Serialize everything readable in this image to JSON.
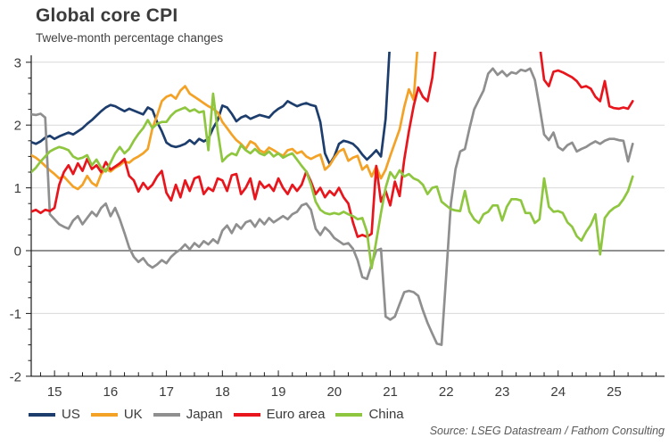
{
  "title": "Global core CPI",
  "subtitle": "Twelve-month percentage changes",
  "source": "Source: LSEG Datastream / Fathom Consulting",
  "chart_data": {
    "type": "line",
    "x_start_year": 2014.583,
    "x_step_months": 1,
    "x_axis": {
      "year_ticks": [
        2015,
        2016,
        2017,
        2018,
        2019,
        2020,
        2021,
        2022,
        2023,
        2024,
        2025
      ],
      "year_labels": [
        "15",
        "16",
        "17",
        "18",
        "19",
        "20",
        "21",
        "22",
        "23",
        "24",
        "25"
      ],
      "minor_tick_months": 3
    },
    "y_axis": {
      "min": -2,
      "max": 3,
      "ticks": [
        3,
        2,
        1,
        0,
        -1,
        -2
      ],
      "tick_labels": [
        "3",
        "2",
        "1",
        "0",
        "-1",
        "-2"
      ],
      "gridlines": [
        3,
        2,
        1,
        -1
      ],
      "zero_line": 0,
      "minor_tick_interval": 0.25
    },
    "legend_position": "bottom",
    "grid_color": "#d9d9d9",
    "zero_line_color": "#4d4d4d",
    "axis_color": "#1a1a1a",
    "series": [
      {
        "name": "US",
        "color": "#1d3d6d",
        "values": [
          1.73,
          1.7,
          1.74,
          1.8,
          1.83,
          1.78,
          1.82,
          1.85,
          1.88,
          1.85,
          1.9,
          1.95,
          2.02,
          2.08,
          2.15,
          2.22,
          2.28,
          2.32,
          2.3,
          2.26,
          2.22,
          2.26,
          2.23,
          2.2,
          2.17,
          2.28,
          2.24,
          2.05,
          1.9,
          1.72,
          1.67,
          1.65,
          1.67,
          1.7,
          1.76,
          1.7,
          1.78,
          1.74,
          1.78,
          1.95,
          2.08,
          2.31,
          2.28,
          2.18,
          2.06,
          2.12,
          2.15,
          2.1,
          2.13,
          2.16,
          2.14,
          2.12,
          2.2,
          2.26,
          2.3,
          2.38,
          2.34,
          2.3,
          2.33,
          2.35,
          2.32,
          2.3,
          2.05,
          1.55,
          1.38,
          1.5,
          1.7,
          1.75,
          1.73,
          1.7,
          1.63,
          1.53,
          1.45,
          1.52,
          1.6,
          1.5,
          2.1,
          3.4,
          null,
          null,
          null,
          null,
          null,
          null,
          null,
          null,
          null,
          null,
          null,
          null,
          null,
          null,
          null,
          null,
          null,
          null,
          null,
          null,
          null,
          null,
          null,
          null,
          null,
          null,
          null,
          null,
          null,
          null,
          null,
          null,
          null,
          null,
          null,
          null,
          null,
          null,
          null,
          null,
          null,
          null,
          null,
          null,
          null,
          null,
          null,
          null,
          null,
          null,
          null,
          null
        ]
      },
      {
        "name": "UK",
        "color": "#f3a226",
        "values": [
          1.52,
          1.48,
          1.42,
          1.35,
          1.28,
          1.22,
          1.15,
          1.18,
          1.1,
          1.02,
          0.98,
          1.05,
          1.19,
          1.08,
          1.03,
          1.22,
          1.3,
          1.26,
          1.32,
          1.36,
          1.42,
          1.4,
          1.46,
          1.5,
          1.55,
          1.62,
          1.95,
          2.15,
          2.38,
          2.45,
          2.48,
          2.42,
          2.55,
          2.62,
          2.5,
          2.45,
          2.4,
          2.35,
          2.3,
          2.26,
          2.2,
          2.05,
          1.95,
          1.85,
          1.76,
          1.7,
          1.62,
          1.74,
          1.7,
          1.6,
          1.56,
          1.64,
          1.6,
          1.55,
          1.51,
          1.6,
          1.62,
          1.55,
          1.58,
          1.5,
          1.46,
          1.5,
          1.53,
          1.29,
          1.36,
          1.48,
          1.58,
          1.62,
          1.43,
          1.48,
          1.51,
          1.29,
          1.36,
          1.18,
          1.34,
          1.15,
          1.29,
          1.51,
          1.72,
          1.93,
          2.29,
          2.57,
          2.4,
          3.4,
          null,
          null,
          null,
          null,
          null,
          null,
          null,
          null,
          null,
          null,
          null,
          null,
          null,
          null,
          null,
          null,
          null,
          null,
          null,
          null,
          null,
          null,
          null,
          null,
          null,
          null,
          null,
          null,
          null,
          null,
          null,
          null,
          null,
          null,
          null,
          null,
          null,
          null,
          null,
          null,
          null,
          null,
          null,
          null,
          null,
          null
        ]
      },
      {
        "name": "Japan",
        "color": "#8f8f8f",
        "values": [
          2.17,
          2.16,
          2.18,
          2.12,
          0.58,
          0.5,
          0.42,
          0.38,
          0.35,
          0.48,
          0.55,
          0.42,
          0.52,
          0.62,
          0.55,
          0.68,
          0.75,
          0.55,
          0.68,
          0.5,
          0.28,
          0.05,
          -0.1,
          -0.18,
          -0.12,
          -0.22,
          -0.27,
          -0.22,
          -0.15,
          -0.2,
          -0.1,
          -0.03,
          0.02,
          0.1,
          0.02,
          0.12,
          0.06,
          0.15,
          0.1,
          0.18,
          0.12,
          0.32,
          0.4,
          0.28,
          0.42,
          0.35,
          0.45,
          0.48,
          0.38,
          0.5,
          0.42,
          0.52,
          0.45,
          0.5,
          0.55,
          0.5,
          0.58,
          0.62,
          0.72,
          0.75,
          0.65,
          0.35,
          0.25,
          0.37,
          0.3,
          0.2,
          0.15,
          0.1,
          0.12,
          0.03,
          -0.15,
          -0.42,
          -0.45,
          -0.22,
          0.0,
          0.03,
          -1.05,
          -1.1,
          -1.05,
          -0.85,
          -0.66,
          -0.64,
          -0.66,
          -0.72,
          -0.95,
          -1.15,
          -1.32,
          -1.48,
          -1.5,
          -0.4,
          0.75,
          1.3,
          1.58,
          1.62,
          1.95,
          2.25,
          2.4,
          2.55,
          2.82,
          2.9,
          2.8,
          2.86,
          2.78,
          2.84,
          2.82,
          2.88,
          2.86,
          2.9,
          2.72,
          2.3,
          1.85,
          1.76,
          1.88,
          1.65,
          1.6,
          1.68,
          1.72,
          1.58,
          1.62,
          1.65,
          1.7,
          1.74,
          1.7,
          1.75,
          1.78,
          1.78,
          1.76,
          1.75,
          1.42,
          1.7
        ]
      },
      {
        "name": "Euro area",
        "color": "#e8151c",
        "values": [
          0.62,
          0.65,
          0.6,
          0.65,
          0.63,
          0.68,
          1.05,
          1.25,
          1.36,
          1.22,
          1.39,
          1.27,
          1.46,
          1.3,
          1.36,
          1.25,
          1.41,
          1.29,
          1.34,
          1.39,
          1.46,
          1.19,
          1.12,
          0.94,
          1.08,
          0.98,
          1.05,
          1.18,
          1.27,
          0.92,
          0.8,
          1.05,
          0.85,
          1.12,
          0.95,
          1.15,
          1.18,
          0.9,
          1.0,
          0.95,
          1.15,
          1.12,
          0.95,
          1.2,
          1.22,
          0.9,
          1.0,
          1.15,
          0.82,
          1.1,
          1.0,
          1.05,
          0.95,
          1.15,
          1.0,
          0.9,
          1.05,
          0.95,
          1.05,
          1.26,
          1.1,
          0.9,
          1.0,
          0.85,
          0.95,
          0.88,
          1.0,
          0.85,
          0.75,
          0.45,
          0.22,
          0.25,
          0.22,
          0.27,
          1.35,
          0.78,
          0.95,
          0.72,
          1.1,
          0.87,
          1.45,
          1.9,
          2.3,
          2.6,
          2.45,
          2.38,
          2.75,
          3.4,
          null,
          null,
          null,
          null,
          null,
          null,
          null,
          null,
          null,
          null,
          null,
          null,
          null,
          null,
          null,
          null,
          null,
          null,
          null,
          null,
          null,
          3.3,
          2.72,
          2.62,
          2.85,
          2.87,
          2.84,
          2.8,
          2.76,
          2.7,
          2.6,
          2.62,
          2.58,
          2.45,
          2.38,
          2.7,
          2.3,
          2.27,
          2.26,
          2.28,
          2.26,
          2.38
        ]
      },
      {
        "name": "China",
        "color": "#8ec63f",
        "values": [
          1.25,
          1.32,
          1.42,
          1.5,
          1.58,
          1.62,
          1.65,
          1.63,
          1.6,
          1.5,
          1.46,
          1.48,
          1.52,
          1.36,
          1.45,
          1.32,
          1.26,
          1.4,
          1.55,
          1.65,
          1.55,
          1.62,
          1.75,
          1.86,
          1.95,
          2.08,
          1.95,
          2.02,
          2.05,
          2.05,
          2.15,
          2.22,
          2.25,
          2.28,
          2.22,
          2.25,
          2.2,
          2.22,
          1.6,
          2.5,
          1.9,
          1.42,
          1.5,
          1.55,
          1.52,
          1.68,
          1.6,
          1.55,
          1.62,
          1.55,
          1.52,
          1.58,
          1.5,
          1.55,
          1.48,
          1.52,
          1.55,
          1.45,
          1.35,
          1.26,
          1.05,
          0.78,
          0.65,
          0.6,
          0.58,
          0.6,
          0.58,
          0.62,
          0.58,
          0.55,
          0.5,
          0.52,
          0.3,
          -0.28,
          0.15,
          0.6,
          1.0,
          1.25,
          1.15,
          1.28,
          1.18,
          1.22,
          1.15,
          1.12,
          1.05,
          0.9,
          1.0,
          1.02,
          0.78,
          0.72,
          0.66,
          0.64,
          0.63,
          0.95,
          0.62,
          0.5,
          0.44,
          0.58,
          0.62,
          0.72,
          0.72,
          0.48,
          0.7,
          0.82,
          0.82,
          0.8,
          0.6,
          0.6,
          0.44,
          0.5,
          1.15,
          0.7,
          0.62,
          0.63,
          0.6,
          0.45,
          0.38,
          0.23,
          0.16,
          0.3,
          0.41,
          0.58,
          -0.06,
          0.52,
          0.62,
          0.68,
          0.72,
          0.82,
          0.95,
          1.18
        ]
      }
    ]
  }
}
